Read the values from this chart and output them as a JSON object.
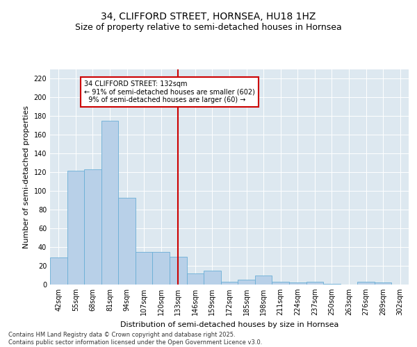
{
  "title": "34, CLIFFORD STREET, HORNSEA, HU18 1HZ",
  "subtitle": "Size of property relative to semi-detached houses in Hornsea",
  "xlabel": "Distribution of semi-detached houses by size in Hornsea",
  "ylabel": "Number of semi-detached properties",
  "categories": [
    "42sqm",
    "55sqm",
    "68sqm",
    "81sqm",
    "94sqm",
    "107sqm",
    "120sqm",
    "133sqm",
    "146sqm",
    "159sqm",
    "172sqm",
    "185sqm",
    "198sqm",
    "211sqm",
    "224sqm",
    "237sqm",
    "250sqm",
    "263sqm",
    "276sqm",
    "289sqm",
    "302sqm"
  ],
  "values": [
    29,
    122,
    123,
    175,
    93,
    35,
    35,
    30,
    12,
    15,
    3,
    5,
    10,
    3,
    2,
    3,
    1,
    0,
    3,
    2,
    0
  ],
  "bar_color": "#b8d0e8",
  "bar_edge_color": "#6aaed6",
  "vline_index": 7,
  "vline_color": "#cc0000",
  "annotation_line1": "34 CLIFFORD STREET: 132sqm",
  "annotation_line2": "← 91% of semi-detached houses are smaller (602)",
  "annotation_line3": "  9% of semi-detached houses are larger (60) →",
  "annotation_box_color": "#ffffff",
  "annotation_box_edge": "#cc0000",
  "ylim": [
    0,
    230
  ],
  "yticks": [
    0,
    20,
    40,
    60,
    80,
    100,
    120,
    140,
    160,
    180,
    200,
    220
  ],
  "bg_color": "#dde8f0",
  "grid_color": "#ffffff",
  "footer": "Contains HM Land Registry data © Crown copyright and database right 2025.\nContains public sector information licensed under the Open Government Licence v3.0.",
  "title_fontsize": 10,
  "subtitle_fontsize": 9,
  "label_fontsize": 8,
  "tick_fontsize": 7,
  "annot_fontsize": 7,
  "footer_fontsize": 6
}
